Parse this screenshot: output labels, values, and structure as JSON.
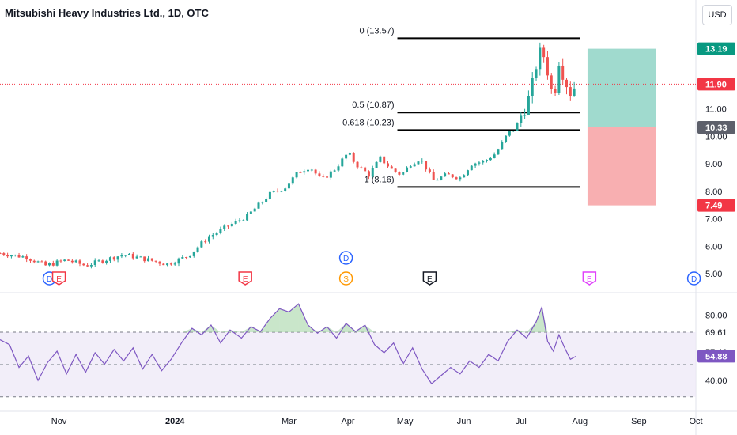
{
  "header": {
    "title": "Mitsubishi Heavy Industries Ltd., 1D, OTC",
    "currency": "USD"
  },
  "colors": {
    "up": "#26a69a",
    "down": "#ef5350",
    "rsi_line": "#7e57c2",
    "rsi_band": "#ede7f6",
    "target_zone": "#8fd3c5",
    "stop_zone": "#f7a1a3",
    "last_price": "#f23645"
  },
  "chart_data": [
    {
      "type": "candlestick",
      "y_ticks": [
        "5.00",
        "6.00",
        "7.00",
        "8.00",
        "9.00",
        "10.00",
        "11.00",
        "12.00"
      ],
      "ylim": [
        4.6,
        14.1
      ],
      "x_ticks": [
        "Nov",
        "2024",
        "Mar",
        "Apr",
        "May",
        "Jun",
        "Jul",
        "Aug",
        "Sep",
        "Oct"
      ],
      "x_tick_dates": [
        "2023-11-01",
        "2024-01-01",
        "2024-03-01",
        "2024-04-01",
        "2024-05-01",
        "2024-06-01",
        "2024-07-01",
        "2024-08-01",
        "2024-09-01",
        "2024-10-01"
      ],
      "date_range": [
        "2023-10-01",
        "2024-10-01"
      ],
      "closes": [
        {
          "date": "2023-10-01",
          "close": 5.75
        },
        {
          "date": "2023-10-15",
          "close": 5.6
        },
        {
          "date": "2023-10-25",
          "close": 5.3
        },
        {
          "date": "2023-11-05",
          "close": 5.5
        },
        {
          "date": "2023-11-15",
          "close": 5.3
        },
        {
          "date": "2023-11-25",
          "close": 5.5
        },
        {
          "date": "2023-12-05",
          "close": 5.7
        },
        {
          "date": "2023-12-15",
          "close": 5.55
        },
        {
          "date": "2023-12-28",
          "close": 5.35
        },
        {
          "date": "2024-01-08",
          "close": 5.65
        },
        {
          "date": "2024-01-18",
          "close": 6.3
        },
        {
          "date": "2024-01-28",
          "close": 6.7
        },
        {
          "date": "2024-02-08",
          "close": 7.1
        },
        {
          "date": "2024-02-20",
          "close": 7.9
        },
        {
          "date": "2024-02-28",
          "close": 8.15
        },
        {
          "date": "2024-03-06",
          "close": 8.7
        },
        {
          "date": "2024-03-12",
          "close": 8.9
        },
        {
          "date": "2024-03-18",
          "close": 8.4
        },
        {
          "date": "2024-03-25",
          "close": 8.8
        },
        {
          "date": "2024-04-01",
          "close": 9.4
        },
        {
          "date": "2024-04-05",
          "close": 9.0
        },
        {
          "date": "2024-04-12",
          "close": 8.6
        },
        {
          "date": "2024-04-18",
          "close": 9.2
        },
        {
          "date": "2024-04-24",
          "close": 8.8
        },
        {
          "date": "2024-04-29",
          "close": 8.6
        },
        {
          "date": "2024-05-04",
          "close": 9.0
        },
        {
          "date": "2024-05-09",
          "close": 9.2
        },
        {
          "date": "2024-05-16",
          "close": 8.4
        },
        {
          "date": "2024-05-23",
          "close": 8.6
        },
        {
          "date": "2024-05-30",
          "close": 8.5
        },
        {
          "date": "2024-06-05",
          "close": 9.0
        },
        {
          "date": "2024-06-12",
          "close": 9.1
        },
        {
          "date": "2024-06-18",
          "close": 9.4
        },
        {
          "date": "2024-06-24",
          "close": 10.1
        },
        {
          "date": "2024-06-28",
          "close": 10.3
        },
        {
          "date": "2024-07-02",
          "close": 10.9
        },
        {
          "date": "2024-07-06",
          "close": 11.5
        },
        {
          "date": "2024-07-09",
          "close": 12.6
        },
        {
          "date": "2024-07-12",
          "close": 13.2
        },
        {
          "date": "2024-07-15",
          "close": 12.4
        },
        {
          "date": "2024-07-18",
          "close": 11.3
        },
        {
          "date": "2024-07-21",
          "close": 12.8
        },
        {
          "date": "2024-07-24",
          "close": 12.1
        },
        {
          "date": "2024-07-27",
          "close": 11.6
        },
        {
          "date": "2024-07-30",
          "close": 11.9
        }
      ],
      "fib_levels": [
        {
          "label": "0 (13.57)",
          "value": 13.57
        },
        {
          "label": "0.5 (10.87)",
          "value": 10.87
        },
        {
          "label": "0.618 (10.23)",
          "value": 10.23
        },
        {
          "label": "1 (8.16)",
          "value": 8.16
        }
      ],
      "fib_start_date": "2024-04-27",
      "fib_end_date": "2024-08-01",
      "position": {
        "target": 13.19,
        "entry": 10.33,
        "stop": 7.49,
        "start_date": "2024-08-05",
        "end_date": "2024-09-10"
      },
      "price_labels": [
        {
          "text": "13.19",
          "value": 13.19,
          "color": "#089981"
        },
        {
          "text": "11.90",
          "value": 11.9,
          "color": "#f23645"
        },
        {
          "text": "10.33",
          "value": 10.33,
          "color": "#5d606b"
        },
        {
          "text": "7.49",
          "value": 7.49,
          "color": "#f23645"
        }
      ],
      "last_price": 11.9,
      "events": [
        {
          "letter": "D",
          "date": "2023-10-27",
          "kind": "dividend"
        },
        {
          "letter": "E",
          "date": "2023-11-01",
          "kind": "earnings-red"
        },
        {
          "letter": "E",
          "date": "2024-02-07",
          "kind": "earnings-red"
        },
        {
          "letter": "S",
          "date": "2024-03-31",
          "kind": "split"
        },
        {
          "letter": "D",
          "date": "2024-03-31",
          "kind": "dividend-upper"
        },
        {
          "letter": "E",
          "date": "2024-05-14",
          "kind": "earnings-black"
        },
        {
          "letter": "E",
          "date": "2024-08-06",
          "kind": "earnings-purple"
        },
        {
          "letter": "D",
          "date": "2024-09-30",
          "kind": "dividend"
        }
      ]
    },
    {
      "type": "line",
      "name": "RSI",
      "y_ticks": [
        "80.00",
        "40.00"
      ],
      "band": [
        30,
        69.61
      ],
      "midline": 50,
      "ylim": [
        25,
        90
      ],
      "labels": [
        {
          "text": "69.61",
          "value": 69.61
        },
        {
          "text": "57.48",
          "value": 57.48
        },
        {
          "text": "54.88",
          "value": 54.88
        }
      ],
      "values": [
        {
          "date": "2023-10-01",
          "value": 65
        },
        {
          "date": "2023-10-06",
          "value": 62
        },
        {
          "date": "2023-10-11",
          "value": 48
        },
        {
          "date": "2023-10-16",
          "value": 55
        },
        {
          "date": "2023-10-21",
          "value": 40
        },
        {
          "date": "2023-10-26",
          "value": 51
        },
        {
          "date": "2023-10-31",
          "value": 58
        },
        {
          "date": "2023-11-05",
          "value": 44
        },
        {
          "date": "2023-11-10",
          "value": 56
        },
        {
          "date": "2023-11-15",
          "value": 45
        },
        {
          "date": "2023-11-20",
          "value": 57
        },
        {
          "date": "2023-11-25",
          "value": 50
        },
        {
          "date": "2023-11-30",
          "value": 59
        },
        {
          "date": "2023-12-05",
          "value": 52
        },
        {
          "date": "2023-12-10",
          "value": 60
        },
        {
          "date": "2023-12-15",
          "value": 47
        },
        {
          "date": "2023-12-20",
          "value": 56
        },
        {
          "date": "2023-12-25",
          "value": 46
        },
        {
          "date": "2023-12-30",
          "value": 53
        },
        {
          "date": "2024-01-05",
          "value": 64
        },
        {
          "date": "2024-01-10",
          "value": 72
        },
        {
          "date": "2024-01-15",
          "value": 68
        },
        {
          "date": "2024-01-20",
          "value": 74
        },
        {
          "date": "2024-01-25",
          "value": 63
        },
        {
          "date": "2024-01-30",
          "value": 71
        },
        {
          "date": "2024-02-05",
          "value": 66
        },
        {
          "date": "2024-02-10",
          "value": 73
        },
        {
          "date": "2024-02-15",
          "value": 70
        },
        {
          "date": "2024-02-20",
          "value": 78
        },
        {
          "date": "2024-02-25",
          "value": 84
        },
        {
          "date": "2024-03-01",
          "value": 82
        },
        {
          "date": "2024-03-06",
          "value": 87
        },
        {
          "date": "2024-03-11",
          "value": 74
        },
        {
          "date": "2024-03-16",
          "value": 69
        },
        {
          "date": "2024-03-21",
          "value": 73
        },
        {
          "date": "2024-03-26",
          "value": 66
        },
        {
          "date": "2024-03-31",
          "value": 75
        },
        {
          "date": "2024-04-05",
          "value": 70
        },
        {
          "date": "2024-04-10",
          "value": 74
        },
        {
          "date": "2024-04-15",
          "value": 62
        },
        {
          "date": "2024-04-20",
          "value": 57
        },
        {
          "date": "2024-04-25",
          "value": 63
        },
        {
          "date": "2024-04-30",
          "value": 50
        },
        {
          "date": "2024-05-05",
          "value": 60
        },
        {
          "date": "2024-05-10",
          "value": 47
        },
        {
          "date": "2024-05-15",
          "value": 38
        },
        {
          "date": "2024-05-20",
          "value": 43
        },
        {
          "date": "2024-05-25",
          "value": 48
        },
        {
          "date": "2024-05-30",
          "value": 44
        },
        {
          "date": "2024-06-04",
          "value": 52
        },
        {
          "date": "2024-06-09",
          "value": 48
        },
        {
          "date": "2024-06-14",
          "value": 56
        },
        {
          "date": "2024-06-19",
          "value": 52
        },
        {
          "date": "2024-06-24",
          "value": 64
        },
        {
          "date": "2024-06-29",
          "value": 71
        },
        {
          "date": "2024-07-04",
          "value": 66
        },
        {
          "date": "2024-07-09",
          "value": 76
        },
        {
          "date": "2024-07-12",
          "value": 85
        },
        {
          "date": "2024-07-15",
          "value": 64
        },
        {
          "date": "2024-07-18",
          "value": 58
        },
        {
          "date": "2024-07-21",
          "value": 68
        },
        {
          "date": "2024-07-24",
          "value": 60
        },
        {
          "date": "2024-07-27",
          "value": 53
        },
        {
          "date": "2024-07-30",
          "value": 54.88
        }
      ]
    }
  ]
}
